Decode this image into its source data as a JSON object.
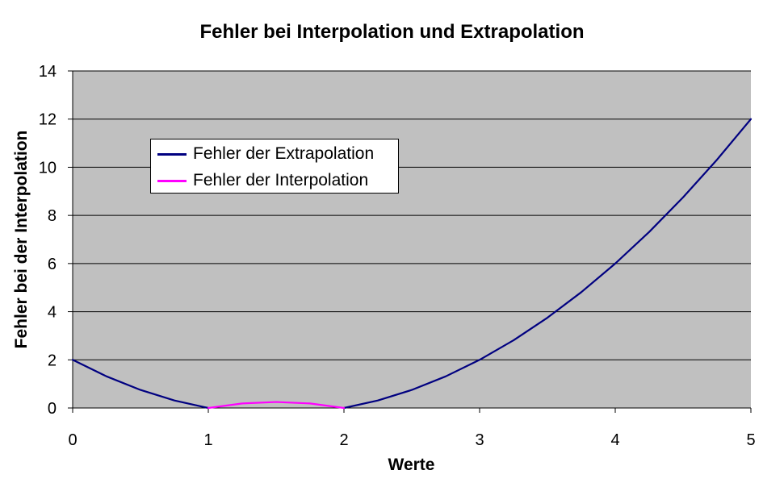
{
  "chart_data": {
    "type": "line",
    "title": "Fehler bei Interpolation und Extrapolation",
    "xlabel": "Werte",
    "ylabel": "Fehler bei der Interpolation",
    "xlim": [
      0,
      5
    ],
    "ylim": [
      0,
      14
    ],
    "x_ticks": [
      "0",
      "1",
      "2",
      "3",
      "4",
      "5"
    ],
    "y_ticks": [
      "0",
      "2",
      "4",
      "6",
      "8",
      "10",
      "12",
      "14"
    ],
    "grid": true,
    "legend_position": "upper-left",
    "plot_background": "#c0c0c0",
    "series": [
      {
        "name": "Fehler der Extrapolation",
        "color": "#000080",
        "segments": [
          {
            "x": [
              0,
              0.25,
              0.5,
              0.75,
              1
            ],
            "y": [
              2,
              1.3125,
              0.75,
              0.3125,
              0
            ]
          },
          {
            "x": [
              2,
              2.25,
              2.5,
              2.75,
              3,
              3.25,
              3.5,
              3.75,
              4,
              4.25,
              4.5,
              4.75,
              5
            ],
            "y": [
              0,
              0.3125,
              0.75,
              1.3125,
              2,
              2.8125,
              3.75,
              4.8125,
              6,
              7.3125,
              8.75,
              10.3125,
              12
            ]
          }
        ]
      },
      {
        "name": "Fehler der Interpolation",
        "color": "#ff00ff",
        "segments": [
          {
            "x": [
              1,
              1.25,
              1.5,
              1.75,
              2
            ],
            "y": [
              0,
              0.1875,
              0.25,
              0.1875,
              0
            ]
          }
        ]
      }
    ]
  }
}
